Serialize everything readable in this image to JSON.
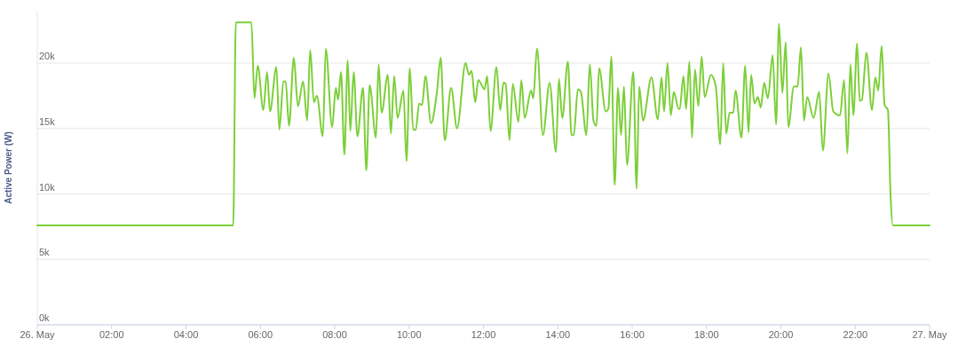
{
  "chart_data": {
    "type": "line",
    "ylabel": "Active Power (W)",
    "xlim": [
      0,
      24
    ],
    "ylim": [
      0,
      24000
    ],
    "xticks": [
      {
        "value": 0,
        "label": "26. May"
      },
      {
        "value": 2,
        "label": "02:00"
      },
      {
        "value": 4,
        "label": "04:00"
      },
      {
        "value": 6,
        "label": "06:00"
      },
      {
        "value": 8,
        "label": "08:00"
      },
      {
        "value": 10,
        "label": "10:00"
      },
      {
        "value": 12,
        "label": "12:00"
      },
      {
        "value": 14,
        "label": "14:00"
      },
      {
        "value": 16,
        "label": "16:00"
      },
      {
        "value": 18,
        "label": "18:00"
      },
      {
        "value": 20,
        "label": "20:00"
      },
      {
        "value": 22,
        "label": "22:00"
      },
      {
        "value": 24,
        "label": "27. May"
      }
    ],
    "yticks": [
      {
        "value": 0,
        "label": "0k"
      },
      {
        "value": 5000,
        "label": "5k"
      },
      {
        "value": 10000,
        "label": "10k"
      },
      {
        "value": 15000,
        "label": "15k"
      },
      {
        "value": 20000,
        "label": "20k"
      }
    ],
    "grid": "y",
    "marker": "none",
    "line_style": "solid",
    "series": [
      {
        "color": "#7ccf38",
        "x": [
          0,
          5.26,
          5.27,
          5.34,
          5.76,
          5.84,
          5.93,
          6.08,
          6.18,
          6.26,
          6.43,
          6.51,
          6.62,
          6.68,
          6.77,
          6.9,
          7.01,
          7.15,
          7.26,
          7.34,
          7.44,
          7.52,
          7.68,
          7.76,
          7.93,
          8.03,
          8.09,
          8.17,
          8.26,
          8.35,
          8.42,
          8.51,
          8.61,
          8.76,
          8.85,
          8.94,
          9.11,
          9.18,
          9.26,
          9.43,
          9.51,
          9.6,
          9.69,
          9.85,
          9.93,
          10.02,
          10.11,
          10.18,
          10.27,
          10.35,
          10.44,
          10.59,
          10.75,
          10.85,
          10.96,
          11.13,
          11.29,
          11.52,
          11.61,
          11.68,
          11.78,
          11.86,
          12.03,
          12.1,
          12.19,
          12.35,
          12.45,
          12.54,
          12.6,
          12.7,
          12.79,
          12.94,
          13.02,
          13.11,
          13.28,
          13.34,
          13.44,
          13.6,
          13.78,
          13.95,
          14.03,
          14.12,
          14.27,
          14.37,
          14.43,
          14.54,
          14.62,
          14.77,
          14.86,
          14.96,
          15.04,
          15.11,
          15.29,
          15.36,
          15.44,
          15.53,
          15.62,
          15.7,
          15.78,
          15.86,
          16.03,
          16.12,
          16.19,
          16.29,
          16.52,
          16.69,
          16.79,
          16.86,
          16.95,
          17.04,
          17.12,
          17.25,
          17.28,
          17.38,
          17.45,
          17.54,
          17.61,
          17.69,
          17.78,
          17.87,
          17.95,
          18.12,
          18.25,
          18.37,
          18.45,
          18.53,
          18.62,
          18.72,
          18.78,
          18.94,
          19.04,
          19.13,
          19.2,
          19.29,
          19.38,
          19.46,
          19.55,
          19.65,
          19.78,
          19.87,
          19.95,
          20.04,
          20.13,
          20.2,
          20.35,
          20.45,
          20.54,
          20.62,
          20.71,
          20.88,
          21.03,
          21.13,
          21.28,
          21.41,
          21.59,
          21.7,
          21.79,
          21.87,
          21.95,
          22.05,
          22.12,
          22.18,
          22.3,
          22.45,
          22.54,
          22.62,
          22.71,
          22.79,
          22.88,
          22.95,
          23.01,
          24
        ],
        "values": [
          7600,
          7600,
          7600,
          23100,
          23100,
          17300,
          19800,
          16400,
          19300,
          16300,
          19700,
          14900,
          18600,
          18600,
          15200,
          20400,
          16700,
          18600,
          15600,
          21000,
          17000,
          17500,
          14400,
          21100,
          15100,
          18100,
          17200,
          19300,
          13000,
          20200,
          14800,
          19300,
          14400,
          18100,
          11800,
          18300,
          14300,
          19900,
          16200,
          19100,
          14600,
          19000,
          15800,
          17900,
          12500,
          19600,
          14900,
          14900,
          16900,
          16800,
          19000,
          15400,
          17800,
          20400,
          14100,
          18100,
          15000,
          20000,
          19100,
          19400,
          17000,
          18700,
          18000,
          19000,
          14800,
          19700,
          16400,
          18500,
          18400,
          14100,
          18400,
          15500,
          18700,
          15800,
          17900,
          17300,
          21100,
          14500,
          18500,
          13200,
          18800,
          15800,
          20100,
          14500,
          14500,
          18000,
          17800,
          14500,
          19900,
          15600,
          15200,
          19600,
          16300,
          16500,
          20500,
          10700,
          18100,
          14500,
          18200,
          12200,
          19300,
          10400,
          18200,
          15600,
          18900,
          15700,
          18900,
          16300,
          20000,
          16000,
          17800,
          16500,
          16500,
          19000,
          16500,
          20100,
          14300,
          19500,
          16700,
          20500,
          17400,
          19100,
          18200,
          13800,
          20000,
          14600,
          16200,
          16200,
          17900,
          14300,
          19800,
          14700,
          19100,
          16900,
          17400,
          16600,
          18500,
          17300,
          20600,
          15300,
          23000,
          17700,
          21600,
          15100,
          18200,
          18200,
          21200,
          15600,
          17400,
          15800,
          17800,
          13300,
          19200,
          16300,
          16000,
          18700,
          13100,
          19900,
          16000,
          21500,
          17100,
          17200,
          20800,
          16400,
          18900,
          17900,
          21300,
          16800,
          16400,
          9900,
          7600,
          7600
        ]
      }
    ]
  }
}
